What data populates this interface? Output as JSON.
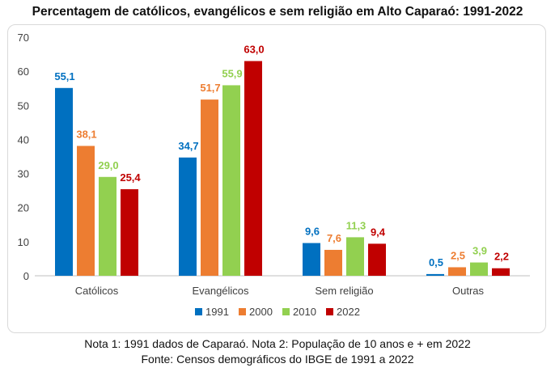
{
  "title": "Percentagem de católicos, evangélicos e sem religião em Alto Caparaó: 1991-2022",
  "notes": {
    "line1": "Nota 1: 1991 dados de Caparaó. Nota 2: População de 10 anos e + em 2022",
    "line2": "Fonte: Censos demográficos do IBGE de 1991 a 2022"
  },
  "chart_data": {
    "type": "bar",
    "title": "Percentagem de católicos, evangélicos e sem religião em Alto Caparaó: 1991-2022",
    "categories": [
      "Católicos",
      "Evangélicos",
      "Sem religião",
      "Outras"
    ],
    "series": [
      {
        "name": "1991",
        "color": "#0070c0",
        "values": [
          55.1,
          34.7,
          9.6,
          0.5
        ],
        "labels": [
          "55,1",
          "34,7",
          "9,6",
          "0,5"
        ]
      },
      {
        "name": "2000",
        "color": "#ed7d31",
        "values": [
          38.1,
          51.7,
          7.6,
          2.5
        ],
        "labels": [
          "38,1",
          "51,7",
          "7,6",
          "2,5"
        ]
      },
      {
        "name": "2010",
        "color": "#92d050",
        "values": [
          29.0,
          55.9,
          11.3,
          3.9
        ],
        "labels": [
          "29,0",
          "55,9",
          "11,3",
          "3,9"
        ]
      },
      {
        "name": "2022",
        "color": "#c00000",
        "values": [
          25.4,
          63.0,
          9.4,
          2.2
        ],
        "labels": [
          "25,4",
          "63,0",
          "9,4",
          "2,2"
        ]
      }
    ],
    "yticks": [
      "0",
      "10",
      "20",
      "30",
      "40",
      "50",
      "60",
      "70"
    ],
    "ylim": [
      0,
      70
    ],
    "grid": false,
    "legend": "bottom"
  }
}
